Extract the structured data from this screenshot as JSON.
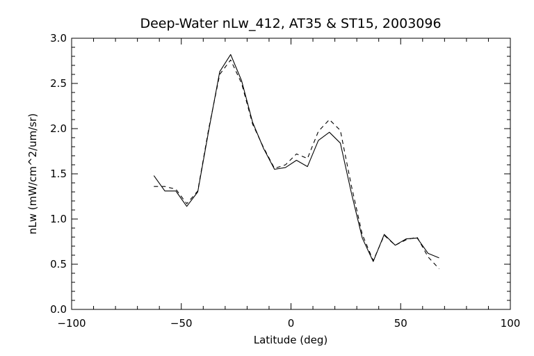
{
  "chart_data": {
    "type": "line",
    "title": "Deep-Water nLw_412, AT35 & ST15, 2003096",
    "xlabel": "Latitude (deg)",
    "ylabel": "nLw (mW/cm^2/um/sr)",
    "xlim": [
      -100,
      100
    ],
    "ylim": [
      0.0,
      3.0
    ],
    "x_ticks": [
      -100,
      -50,
      0,
      50,
      100
    ],
    "x_tick_labels": [
      "−100",
      "−50",
      "0",
      "50",
      "100"
    ],
    "y_ticks": [
      0.0,
      0.5,
      1.0,
      1.5,
      2.0,
      2.5,
      3.0
    ],
    "y_tick_labels": [
      "0.0",
      "0.5",
      "1.0",
      "1.5",
      "2.0",
      "2.5",
      "3.0"
    ],
    "grid": false,
    "legend": "none",
    "series": [
      {
        "style": "solid",
        "color": "#000000",
        "x": [
          -62.5,
          -57.5,
          -52.5,
          -47.5,
          -42.5,
          -37.5,
          -32.5,
          -27.5,
          -22.5,
          -17.5,
          -12.5,
          -7.5,
          -2.5,
          2.5,
          7.5,
          12.5,
          17.5,
          22.5,
          27.5,
          32.5,
          37.5,
          42.5,
          47.5,
          52.5,
          57.5,
          62.5,
          67.5
        ],
        "y": [
          1.48,
          1.31,
          1.31,
          1.14,
          1.3,
          1.98,
          2.63,
          2.82,
          2.53,
          2.07,
          1.78,
          1.55,
          1.57,
          1.65,
          1.58,
          1.87,
          1.96,
          1.84,
          1.29,
          0.79,
          0.53,
          0.83,
          0.71,
          0.78,
          0.79,
          0.62,
          0.57
        ]
      },
      {
        "style": "dashed",
        "color": "#000000",
        "x": [
          -62.5,
          -57.5,
          -52.5,
          -47.5,
          -42.5,
          -37.5,
          -32.5,
          -27.5,
          -22.5,
          -17.5,
          -12.5,
          -7.5,
          -2.5,
          2.5,
          7.5,
          12.5,
          17.5,
          22.5,
          27.5,
          32.5,
          37.5,
          42.5,
          47.5,
          52.5,
          57.5,
          62.5,
          67.5
        ],
        "y": [
          1.36,
          1.36,
          1.33,
          1.17,
          1.31,
          2.0,
          2.6,
          2.76,
          2.5,
          2.05,
          1.79,
          1.56,
          1.6,
          1.72,
          1.67,
          1.97,
          2.1,
          1.98,
          1.37,
          0.83,
          0.54,
          0.82,
          0.71,
          0.77,
          0.8,
          0.58,
          0.45
        ]
      }
    ]
  }
}
